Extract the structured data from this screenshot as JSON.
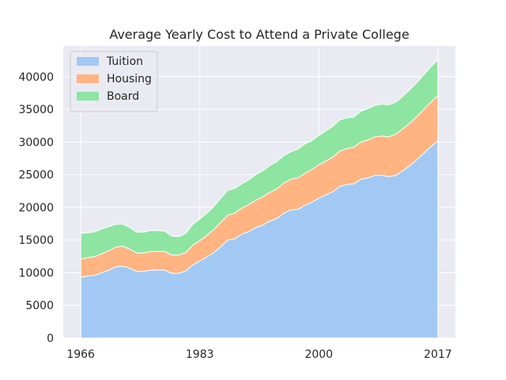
{
  "chart_data": {
    "type": "area",
    "stacked": true,
    "title": "Average Yearly Cost to Attend a Private College",
    "xlabel": "",
    "ylabel": "",
    "x": [
      1966,
      1967,
      1968,
      1969,
      1970,
      1971,
      1972,
      1973,
      1974,
      1975,
      1976,
      1977,
      1978,
      1979,
      1980,
      1981,
      1982,
      1983,
      1984,
      1985,
      1986,
      1987,
      1988,
      1989,
      1990,
      1991,
      1992,
      1993,
      1994,
      1995,
      1996,
      1997,
      1998,
      1999,
      2000,
      2001,
      2002,
      2003,
      2004,
      2005,
      2006,
      2007,
      2008,
      2009,
      2010,
      2011,
      2012,
      2013,
      2014,
      2015,
      2016,
      2017
    ],
    "xticks": [
      1966,
      1983,
      2000,
      2017
    ],
    "xlim": [
      1963.5,
      2019.5
    ],
    "ylim": [
      0,
      44700
    ],
    "yticks": [
      0,
      5000,
      10000,
      15000,
      20000,
      25000,
      30000,
      35000,
      40000
    ],
    "grid": true,
    "legend_position": "top-left",
    "series": [
      {
        "name": "Tuition",
        "color": "#a1c9f4",
        "values": [
          9300,
          9500,
          9600,
          10000,
          10400,
          10900,
          11000,
          10700,
          10200,
          10200,
          10400,
          10400,
          10400,
          9900,
          9900,
          10300,
          11200,
          11800,
          12400,
          13100,
          14000,
          15000,
          15200,
          15900,
          16300,
          16900,
          17300,
          17900,
          18300,
          19100,
          19600,
          19700,
          20300,
          20800,
          21400,
          21900,
          22400,
          23200,
          23500,
          23600,
          24300,
          24500,
          24900,
          24900,
          24700,
          24900,
          25600,
          26400,
          27300,
          28300,
          29300,
          30200
        ]
      },
      {
        "name": "Housing",
        "color": "#ffb482",
        "values": [
          2800,
          2800,
          2850,
          2900,
          2950,
          3000,
          3050,
          2900,
          2800,
          2800,
          2850,
          2850,
          2850,
          2800,
          2800,
          2800,
          3000,
          3100,
          3300,
          3500,
          3700,
          3800,
          3900,
          4000,
          4100,
          4200,
          4300,
          4400,
          4500,
          4600,
          4700,
          4800,
          4900,
          5000,
          5100,
          5200,
          5300,
          5400,
          5500,
          5600,
          5700,
          5800,
          5900,
          6000,
          6100,
          6300,
          6400,
          6500,
          6600,
          6700,
          6800,
          6900
        ]
      },
      {
        "name": "Board",
        "color": "#8de5a1",
        "values": [
          3900,
          3800,
          3800,
          3800,
          3700,
          3500,
          3400,
          3300,
          3200,
          3200,
          3200,
          3200,
          3100,
          2900,
          2800,
          2900,
          3200,
          3300,
          3400,
          3500,
          3700,
          3800,
          3800,
          3700,
          3800,
          3900,
          4000,
          4100,
          4200,
          4200,
          4200,
          4400,
          4500,
          4400,
          4500,
          4600,
          4700,
          4800,
          4700,
          4600,
          4700,
          4800,
          4800,
          4900,
          4900,
          4900,
          5000,
          5100,
          5200,
          5300,
          5400,
          5500
        ]
      }
    ]
  }
}
